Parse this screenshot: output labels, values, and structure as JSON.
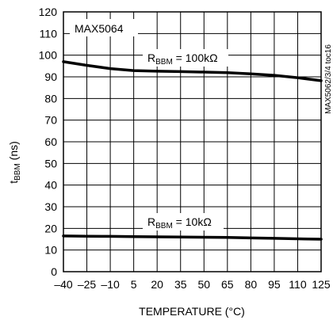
{
  "chart_data": {
    "type": "line",
    "title": "",
    "xlabel": "TEMPERATURE (°C)",
    "ylabel": {
      "main": "t",
      "sub": "BBM",
      "unit": " (ns)"
    },
    "xlim": [
      -40,
      125
    ],
    "ylim": [
      0,
      120
    ],
    "xticks": [
      -40,
      -25,
      -10,
      5,
      20,
      35,
      50,
      65,
      80,
      95,
      110,
      125
    ],
    "yticks": [
      0,
      10,
      20,
      30,
      40,
      50,
      60,
      70,
      80,
      90,
      100,
      110,
      120
    ],
    "grid": true,
    "device_label": "MAX5064",
    "side_note": "MAX5062/3/4 toc16",
    "series": [
      {
        "name": {
          "main": "R",
          "sub": "BBM",
          "rest": " = 100kΩ"
        },
        "x": [
          -40,
          -25,
          -10,
          5,
          20,
          35,
          50,
          65,
          80,
          95,
          110,
          125
        ],
        "y": [
          97,
          95.3,
          93.8,
          92.9,
          92.6,
          92.4,
          92.2,
          91.9,
          91.4,
          90.7,
          89.6,
          88.2
        ]
      },
      {
        "name": {
          "main": "R",
          "sub": "BBM",
          "rest": " = 10kΩ"
        },
        "x": [
          -40,
          -25,
          -10,
          5,
          20,
          35,
          50,
          65,
          80,
          95,
          110,
          125
        ],
        "y": [
          16.5,
          16.4,
          16.3,
          16.2,
          16.1,
          16.0,
          15.9,
          15.8,
          15.6,
          15.4,
          15.2,
          15.0
        ]
      }
    ]
  }
}
